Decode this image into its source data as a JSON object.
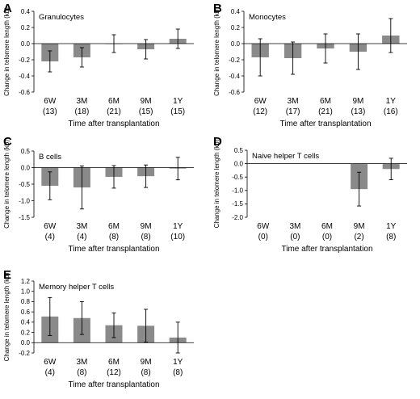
{
  "chart_data": [
    {
      "panel": "A",
      "type": "bar",
      "title": "Granulocytes",
      "ylabel": "Change in telomere length (kb)",
      "xlabel": "Time after transplantation",
      "ylim": [
        -0.6,
        0.4
      ],
      "yticks": [
        -0.6,
        -0.4,
        -0.2,
        0.0,
        0.2,
        0.4
      ],
      "ytick_labels": [
        "-0.6",
        "-0.4",
        "-0.2",
        "0.0",
        "0.2",
        "0.4"
      ],
      "categories": [
        "6W",
        "3M",
        "6M",
        "9M",
        "1Y"
      ],
      "n_labels": [
        "(13)",
        "(18)",
        "(21)",
        "(15)",
        "(15)"
      ],
      "values": [
        -0.22,
        -0.17,
        0.0,
        -0.07,
        0.06
      ],
      "err_low": [
        -0.35,
        -0.29,
        -0.11,
        -0.19,
        -0.06
      ],
      "err_high": [
        -0.09,
        -0.05,
        0.11,
        0.05,
        0.18
      ]
    },
    {
      "panel": "B",
      "type": "bar",
      "title": "Monocytes",
      "ylabel": "Change in telomere length (kb)",
      "xlabel": "Time after transplantation",
      "ylim": [
        -0.6,
        0.4
      ],
      "yticks": [
        -0.6,
        -0.4,
        -0.2,
        0.0,
        0.2,
        0.4
      ],
      "ytick_labels": [
        "-0.6",
        "-0.4",
        "-0.2",
        "0.0",
        "0.2",
        "0.4"
      ],
      "categories": [
        "6W",
        "3M",
        "6M",
        "9M",
        "1Y"
      ],
      "n_labels": [
        "(12)",
        "(17)",
        "(21)",
        "(13)",
        "(16)"
      ],
      "values": [
        -0.17,
        -0.18,
        -0.06,
        -0.1,
        0.1
      ],
      "err_low": [
        -0.4,
        -0.38,
        -0.24,
        -0.32,
        -0.11
      ],
      "err_high": [
        0.06,
        0.02,
        0.12,
        0.12,
        0.31
      ]
    },
    {
      "panel": "C",
      "type": "bar",
      "title": "B cells",
      "ylabel": "Change in telomere length (kb)",
      "xlabel": "Time after transplantation",
      "ylim": [
        -1.5,
        0.5
      ],
      "yticks": [
        -1.5,
        -1.0,
        -0.5,
        0.0,
        0.5
      ],
      "ytick_labels": [
        "-1.5",
        "-1.0",
        "-0.5",
        "0.0",
        "0.5"
      ],
      "categories": [
        "6W",
        "3M",
        "6M",
        "9M",
        "1Y"
      ],
      "n_labels": [
        "(4)",
        "(4)",
        "(8)",
        "(8)",
        "(10)"
      ],
      "values": [
        -0.55,
        -0.6,
        -0.28,
        -0.26,
        -0.03
      ],
      "err_low": [
        -0.97,
        -1.25,
        -0.62,
        -0.6,
        -0.37
      ],
      "err_high": [
        -0.13,
        0.05,
        0.06,
        0.08,
        0.31
      ]
    },
    {
      "panel": "D",
      "type": "bar",
      "title": "Naive helper T cells",
      "ylabel": "Change in telomere length (kb)",
      "xlabel": "Time after transplantation",
      "ylim": [
        -2.0,
        0.5
      ],
      "yticks": [
        -2.0,
        -1.5,
        -1.0,
        -0.5,
        0.0,
        0.5
      ],
      "ytick_labels": [
        "-2.0",
        "-1.5",
        "-1.0",
        "-0.5",
        "0.0",
        "0.5"
      ],
      "categories": [
        "6W",
        "3M",
        "6M",
        "9M",
        "1Y"
      ],
      "n_labels": [
        "(0)",
        "(0)",
        "(0)",
        "(2)",
        "(8)"
      ],
      "values": [
        null,
        null,
        null,
        -0.95,
        -0.2
      ],
      "err_low": [
        null,
        null,
        null,
        -1.58,
        -0.6
      ],
      "err_high": [
        null,
        null,
        null,
        -0.32,
        0.2
      ]
    },
    {
      "panel": "E",
      "type": "bar",
      "title": "Memory helper T cells",
      "ylabel": "Change in telomere length (kb)",
      "xlabel": "Time after transplantation",
      "ylim": [
        -0.2,
        1.2
      ],
      "yticks": [
        -0.2,
        0.0,
        0.2,
        0.4,
        0.6,
        0.8,
        1.0,
        1.2
      ],
      "ytick_labels": [
        "-0.2",
        "0.0",
        "0.2",
        "0.4",
        "0.6",
        "0.8",
        "1.0",
        "1.2"
      ],
      "categories": [
        "6W",
        "3M",
        "6M",
        "9M",
        "1Y"
      ],
      "n_labels": [
        "(4)",
        "(8)",
        "(12)",
        "(8)",
        "(8)"
      ],
      "values": [
        0.51,
        0.48,
        0.34,
        0.33,
        0.1
      ],
      "err_low": [
        0.14,
        0.16,
        0.1,
        0.01,
        -0.2
      ],
      "err_high": [
        0.88,
        0.8,
        0.58,
        0.65,
        0.4
      ]
    }
  ],
  "colors": {
    "bar_fill": "#8a8a8a",
    "axis": "#000000"
  }
}
